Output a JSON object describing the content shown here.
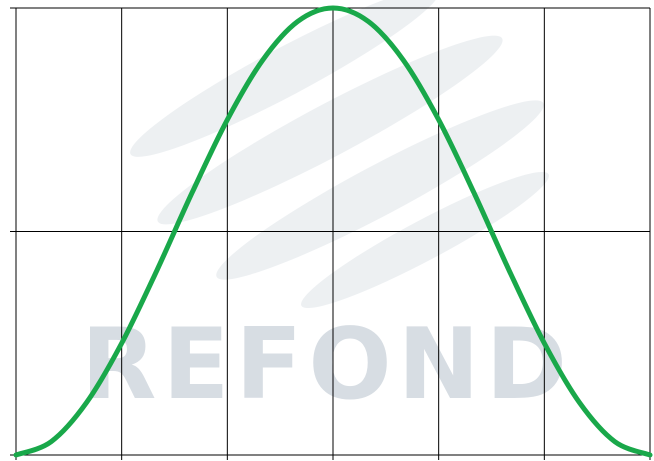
{
  "watermark": {
    "text": "REFOND",
    "color": "#d7dde3"
  },
  "chart_data": {
    "type": "line",
    "title": "",
    "xlabel": "",
    "ylabel": "",
    "xlim": [
      -90,
      90
    ],
    "ylim": [
      0,
      1
    ],
    "x_gridlines": [
      -90,
      -60,
      -30,
      0,
      30,
      60,
      90
    ],
    "y_gridlines": [
      0,
      0.5,
      1
    ],
    "tick_labels_shown": false,
    "grid": true,
    "series": [
      {
        "color": "#19a84a",
        "x": [
          -90,
          -80,
          -70,
          -60,
          -50,
          -40,
          -30,
          -20,
          -10,
          0,
          10,
          20,
          30,
          40,
          50,
          60,
          70,
          80,
          90
        ],
        "y": [
          0.0,
          0.03,
          0.117,
          0.25,
          0.413,
          0.587,
          0.75,
          0.883,
          0.97,
          1.0,
          0.97,
          0.883,
          0.75,
          0.587,
          0.413,
          0.25,
          0.117,
          0.03,
          0.0
        ]
      }
    ]
  }
}
